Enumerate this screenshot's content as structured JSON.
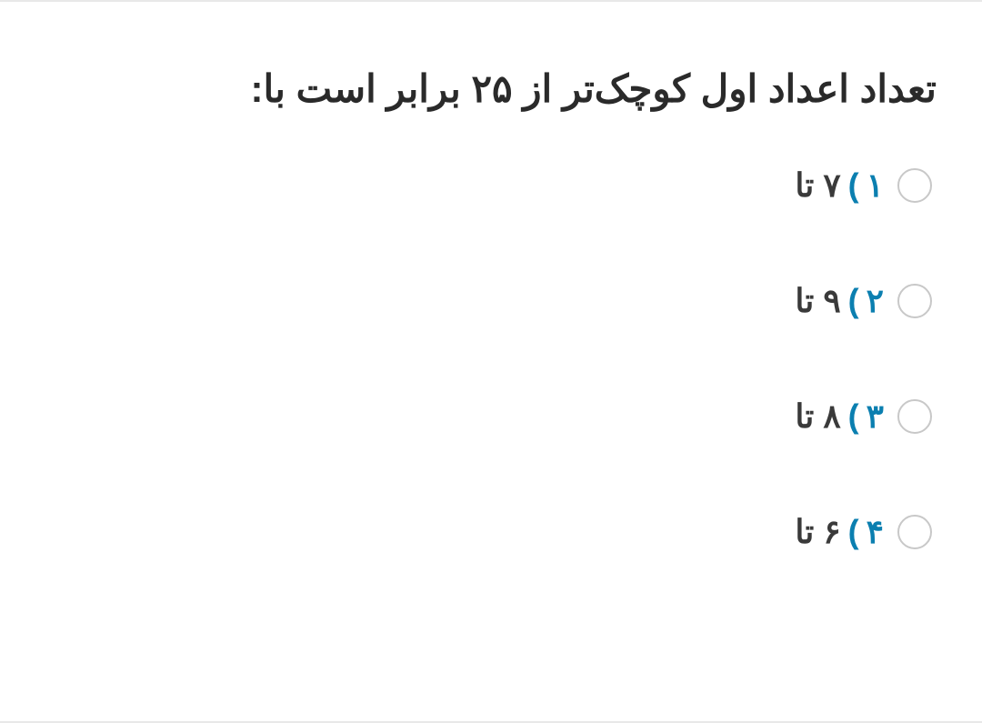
{
  "question": {
    "text": "تعداد اعداد اول کوچک‌تر از ۲۵ برابر است با:",
    "text_color": "#2a2a2a",
    "font_size": 42,
    "font_weight": 700
  },
  "options": [
    {
      "number": "۱",
      "paren": ")",
      "text": "۷ تا"
    },
    {
      "number": "۲",
      "paren": ")",
      "text": "۹ تا"
    },
    {
      "number": "۳",
      "paren": ")",
      "text": "۸ تا"
    },
    {
      "number": "۴",
      "paren": ")",
      "text": "۶ تا"
    }
  ],
  "styling": {
    "number_color": "#0b7fb0",
    "option_text_color": "#3a3a3a",
    "radio_border_color": "#c8c8c8",
    "background_color": "#ffffff",
    "border_color": "#e8e8e8",
    "option_font_size": 36,
    "option_gap": 85,
    "radio_size": 38
  }
}
